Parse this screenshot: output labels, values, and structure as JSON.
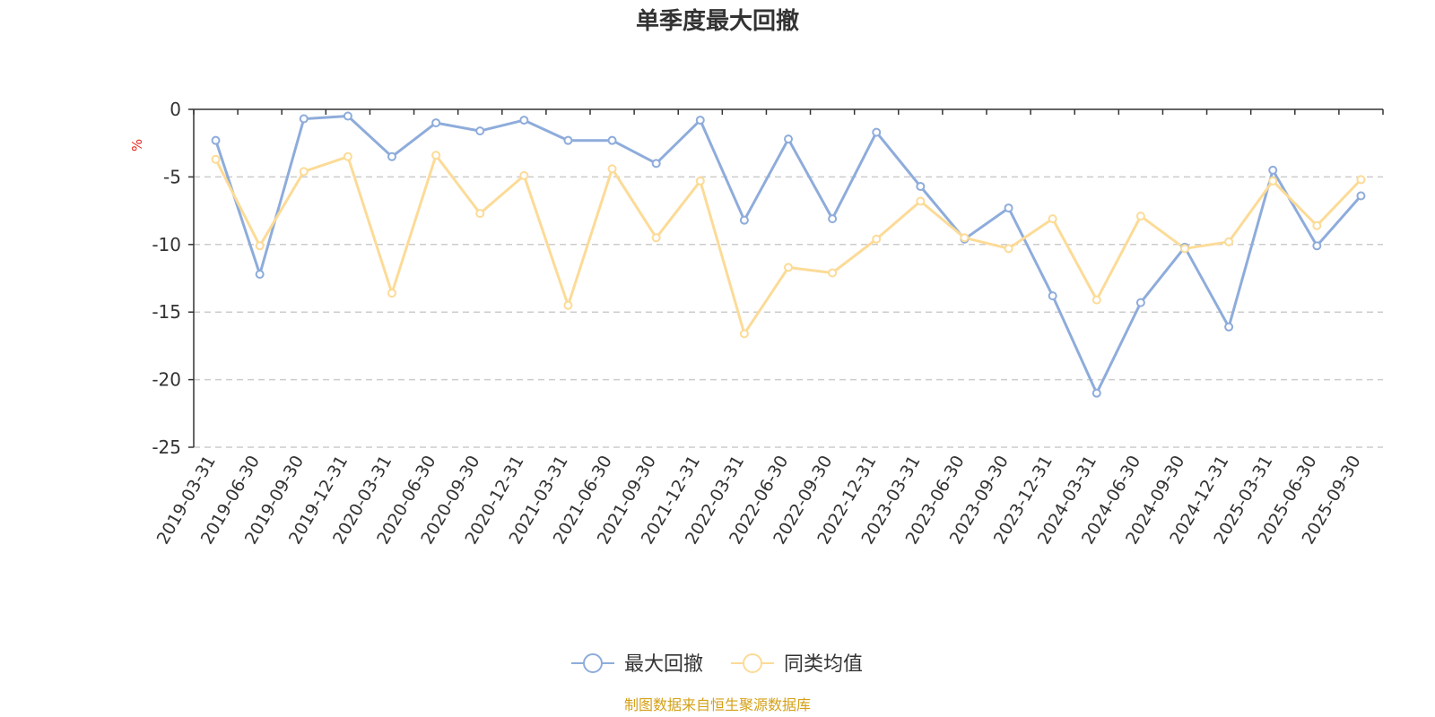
{
  "chart_data": {
    "type": "line",
    "title": "单季度最大回撤",
    "ylabel": "%",
    "ylim": [
      -25,
      0
    ],
    "yticks": [
      0,
      -5,
      -10,
      -15,
      -20,
      -25
    ],
    "grid": true,
    "legend_position": "bottom",
    "categories": [
      "2019-03-31",
      "2019-06-30",
      "2019-09-30",
      "2019-12-31",
      "2020-03-31",
      "2020-06-30",
      "2020-09-30",
      "2020-12-31",
      "2021-03-31",
      "2021-06-30",
      "2021-09-30",
      "2021-12-31",
      "2022-03-31",
      "2022-06-30",
      "2022-09-30",
      "2022-12-31",
      "2023-03-31",
      "2023-06-30",
      "2023-09-30",
      "2023-12-31",
      "2024-03-31",
      "2024-06-30",
      "2024-09-30",
      "2024-12-31",
      "2025-03-31",
      "2025-06-30",
      "2025-09-30"
    ],
    "series": [
      {
        "name": "最大回撤",
        "color": "#8eacdb",
        "values": [
          -2.3,
          -12.2,
          -0.7,
          -0.5,
          -3.5,
          -1.0,
          -1.6,
          -0.8,
          -2.3,
          -2.3,
          -4.0,
          -0.8,
          -8.2,
          -2.2,
          -8.1,
          -1.7,
          -5.7,
          -9.6,
          -7.3,
          -13.8,
          -21.0,
          -14.3,
          -10.2,
          -16.1,
          -4.5,
          -10.1,
          -6.4
        ]
      },
      {
        "name": "同类均值",
        "color": "#fcdb97",
        "values": [
          -3.7,
          -10.1,
          -4.6,
          -3.5,
          -13.6,
          -3.4,
          -7.7,
          -4.9,
          -14.5,
          -4.4,
          -9.5,
          -5.3,
          -16.6,
          -11.7,
          -12.1,
          -9.6,
          -6.8,
          -9.5,
          -10.3,
          -8.1,
          -14.1,
          -7.9,
          -10.3,
          -9.8,
          -5.3,
          -8.6,
          -5.2
        ]
      }
    ],
    "source": "制图数据来自恒生聚源数据库",
    "unit_color": "#e8281e",
    "source_color": "#d4a017",
    "axis_color": "#333333",
    "grid_color": "#cccccc"
  }
}
